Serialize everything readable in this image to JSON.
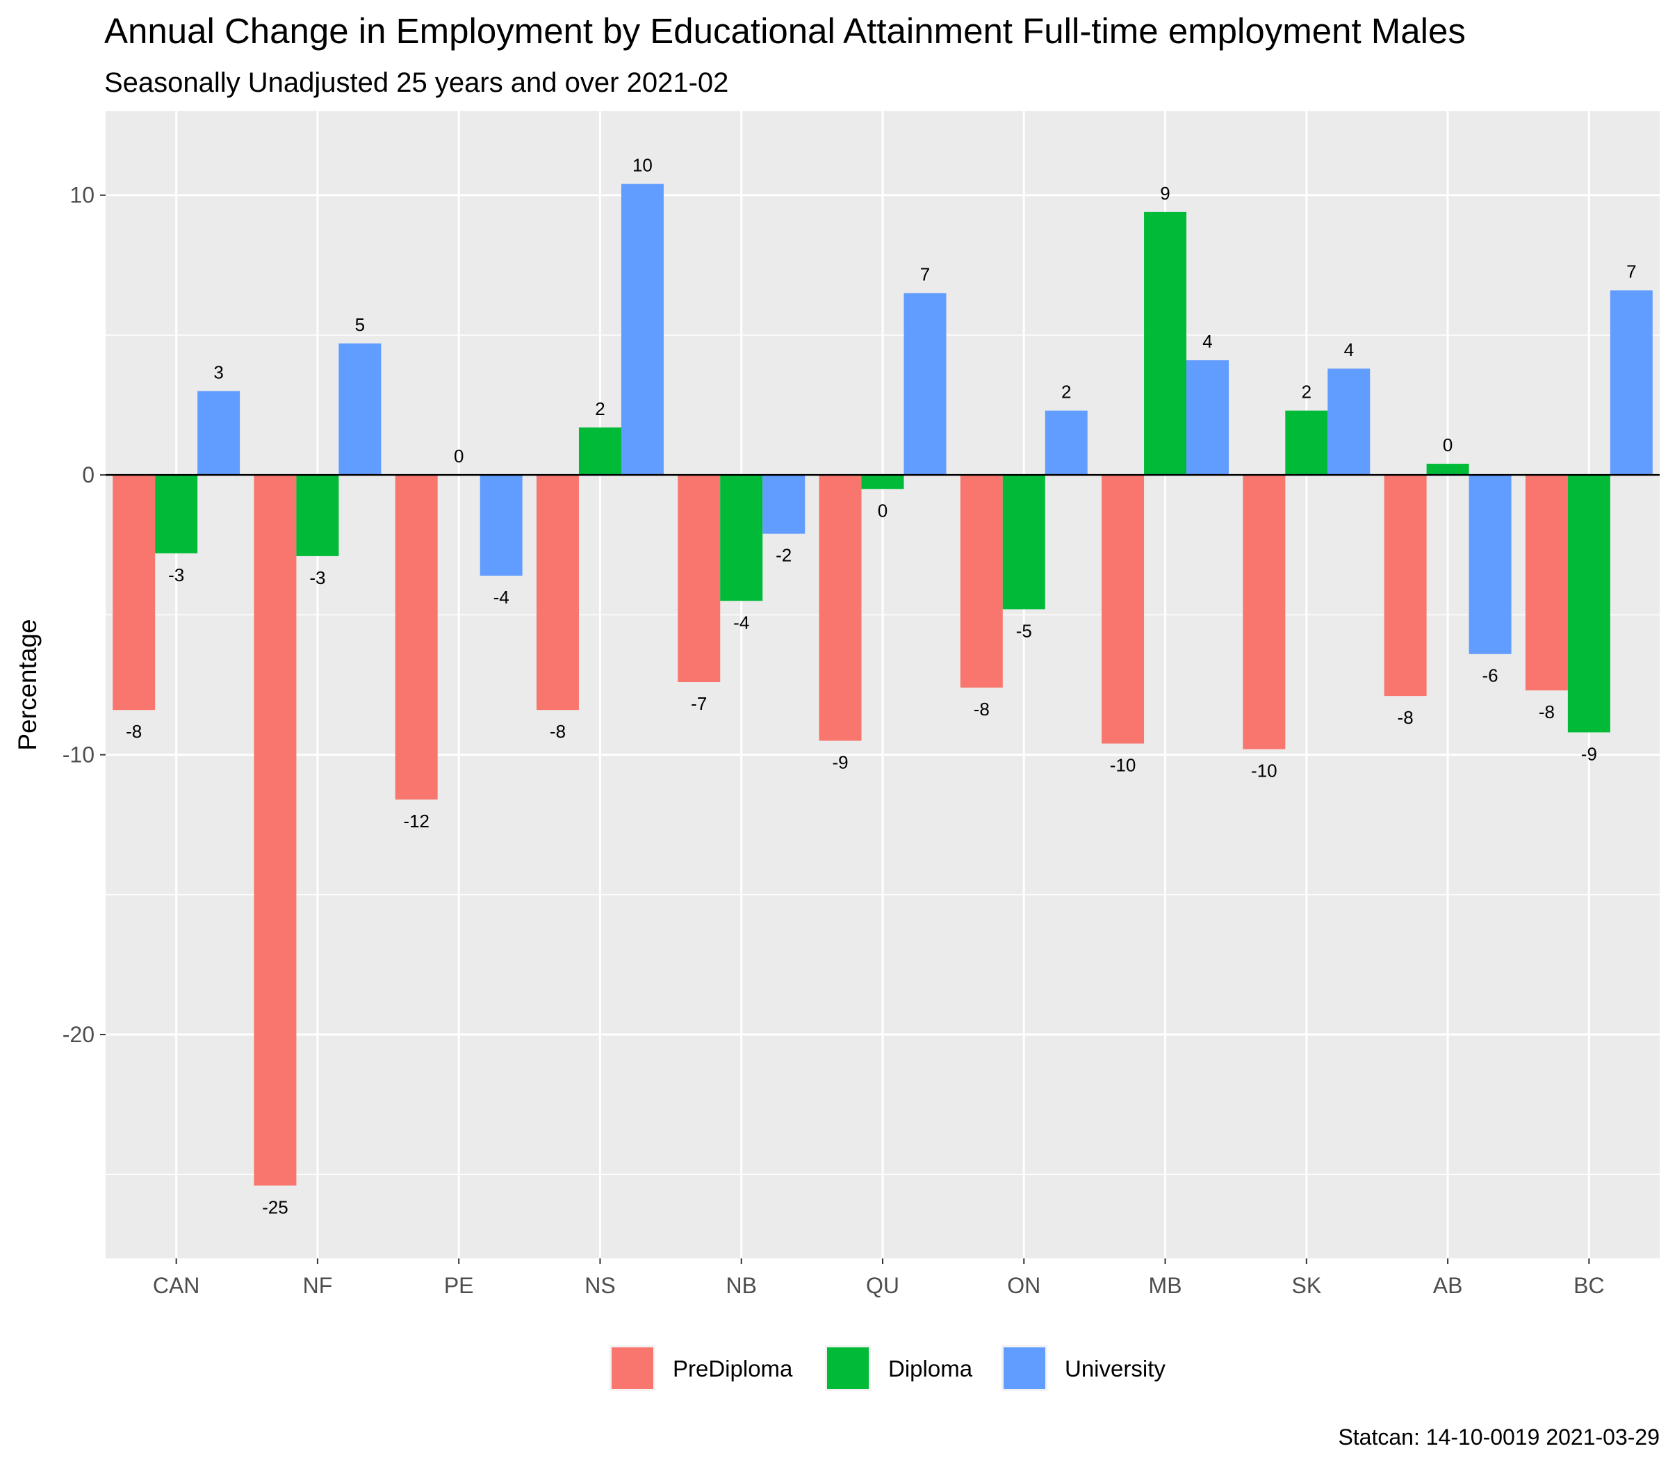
{
  "chart_data": {
    "type": "bar",
    "title": "Annual Change in Employment by Educational Attainment Full-time employment Males",
    "subtitle": "Seasonally Unadjusted 25 years and over 2021-02",
    "xlabel": "",
    "ylabel": "Percentage",
    "categories": [
      "CAN",
      "NF",
      "PE",
      "NS",
      "NB",
      "QU",
      "ON",
      "MB",
      "SK",
      "AB",
      "BC"
    ],
    "series": [
      {
        "name": "PreDiploma",
        "color": "#F8766D",
        "values": [
          -8.4,
          -25.4,
          -11.6,
          -8.4,
          -7.4,
          -9.5,
          -7.6,
          -9.6,
          -9.8,
          -7.9,
          -7.7
        ],
        "labels": [
          "-8",
          "-25",
          "-12",
          "-8",
          "-7",
          "-9",
          "-8",
          "-10",
          "-10",
          "-8",
          "-8"
        ]
      },
      {
        "name": "Diploma",
        "color": "#00BA38",
        "values": [
          -2.8,
          -2.9,
          0.0,
          1.7,
          -4.5,
          -0.5,
          -4.8,
          9.4,
          2.3,
          0.4,
          -9.2
        ],
        "labels": [
          "-3",
          "-3",
          "0",
          "2",
          "-4",
          "0",
          "-5",
          "9",
          "2",
          "0",
          "-9"
        ]
      },
      {
        "name": "University",
        "color": "#619CFF",
        "values": [
          3.0,
          4.7,
          -3.6,
          10.4,
          -2.1,
          6.5,
          2.3,
          4.1,
          3.8,
          -6.4,
          6.6
        ],
        "labels": [
          "3",
          "5",
          "-4",
          "10",
          "-2",
          "7",
          "2",
          "4",
          "4",
          "-6",
          "7"
        ]
      }
    ],
    "ylim": [
      -28,
      13
    ],
    "yticks": [
      -20,
      -10,
      0,
      10
    ],
    "grid": true,
    "legend_position": "bottom",
    "caption": "Statcan: 14-10-0019 2021-03-29"
  }
}
